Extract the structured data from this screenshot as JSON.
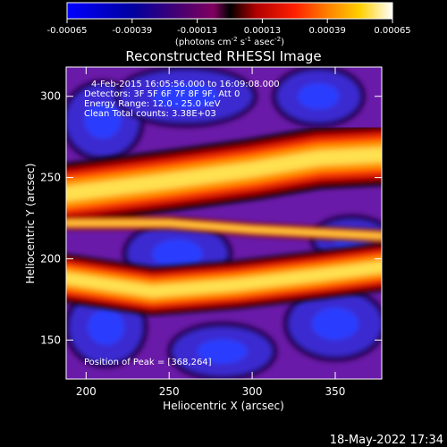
{
  "chart_data": {
    "type": "heatmap",
    "title": "Reconstructed RHESSI Image",
    "xlabel": "Heliocentric X (arcsec)",
    "ylabel": "Heliocentric Y (arcsec)",
    "xlim": [
      188,
      378
    ],
    "ylim": [
      126,
      318
    ],
    "x_ticks": [
      200,
      250,
      300,
      350
    ],
    "y_ticks": [
      150,
      200,
      250,
      300
    ],
    "colorbar": {
      "range": [
        -0.00065,
        0.00065
      ],
      "ticks": [
        "-0.00065",
        "-0.00039",
        "-0.00013",
        "0.00013",
        "0.00039",
        "0.00065"
      ],
      "unit_parts": [
        "(photons cm",
        "-2",
        " s",
        "-1",
        " asec",
        "-2",
        ")"
      ]
    },
    "annotations": [
      "4-Feb-2015 16:05:56.000 to 16:09:08.000",
      "Detectors: 3F 5F 6F 7F 8F 9F, Att 0",
      "Energy Range: 12.0 - 25.0 keV",
      "Clean    Total counts: 3.38E+03"
    ],
    "peak_label": "Position of Peak = [368,264]",
    "peak": [
      368,
      264
    ],
    "bright_bands": [
      {
        "x": [
          188,
          250,
          300,
          340,
          378
        ],
        "y": [
          240,
          248,
          255,
          262,
          264
        ],
        "width": 28
      },
      {
        "x": [
          188,
          240,
          290,
          340,
          378
        ],
        "y": [
          188,
          180,
          184,
          190,
          195
        ],
        "width": 22
      },
      {
        "x": [
          188,
          250,
          300,
          378
        ],
        "y": [
          222,
          222,
          218,
          214
        ],
        "width": 6
      }
    ],
    "dark_blobs": [
      {
        "cx": 210,
        "cy": 285,
        "rx": 22,
        "ry": 22
      },
      {
        "cx": 260,
        "cy": 300,
        "rx": 40,
        "ry": 16
      },
      {
        "cx": 340,
        "cy": 300,
        "rx": 25,
        "ry": 16
      },
      {
        "cx": 255,
        "cy": 203,
        "rx": 30,
        "ry": 18
      },
      {
        "cx": 360,
        "cy": 212,
        "rx": 22,
        "ry": 12
      },
      {
        "cx": 212,
        "cy": 158,
        "rx": 22,
        "ry": 22
      },
      {
        "cx": 282,
        "cy": 143,
        "rx": 30,
        "ry": 15
      },
      {
        "cx": 350,
        "cy": 160,
        "rx": 28,
        "ry": 20
      }
    ],
    "timestamp": "18-May-2022 17:34"
  }
}
